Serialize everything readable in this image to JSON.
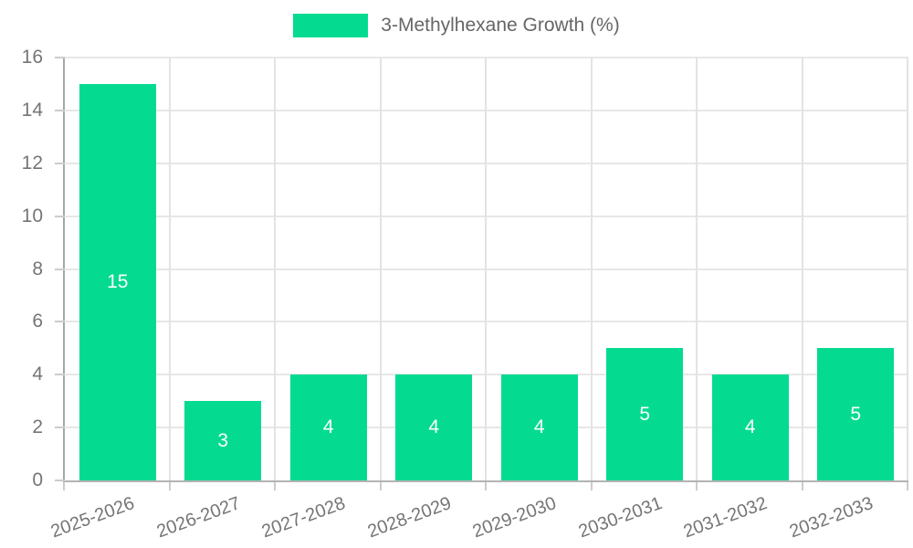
{
  "legend": {
    "label": "3-Methylhexane Growth (%)"
  },
  "colors": {
    "bar": "#05DB90",
    "grid_horizontal": "#e7e7e7",
    "grid_vertical": "#e3e3e3",
    "axis_left": "#a6a6a6",
    "axis_bottom": "#b3b3b3",
    "tick": "#cccccc",
    "axis_label_text": "#757575",
    "legend_text": "#666666",
    "bar_value_text": "#ffffff",
    "background": "#ffffff"
  },
  "chart_data": {
    "type": "bar",
    "series_name": "3-Methylhexane Growth (%)",
    "categories": [
      "2025-2026",
      "2026-2027",
      "2027-2028",
      "2028-2029",
      "2029-2030",
      "2030-2031",
      "2031-2032",
      "2032-2033"
    ],
    "values": [
      15,
      3,
      4,
      4,
      4,
      5,
      4,
      5
    ],
    "bar_value_labels": [
      "15",
      "3",
      "4",
      "4",
      "4",
      "5",
      "4",
      "5"
    ],
    "ylim": [
      0,
      16
    ],
    "yticks": [
      0,
      2,
      4,
      6,
      8,
      10,
      12,
      14,
      16
    ],
    "grid": true,
    "legend_position": "top-center",
    "x_label_rotation_deg": -20,
    "xlabel": "",
    "ylabel": ""
  }
}
